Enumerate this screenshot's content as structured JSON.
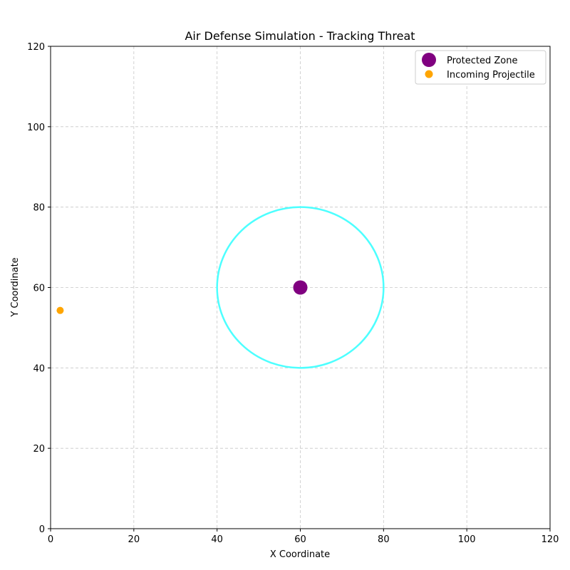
{
  "chart_data": {
    "type": "scatter",
    "title": "Air Defense Simulation - Tracking Threat",
    "xlabel": "X Coordinate",
    "ylabel": "Y Coordinate",
    "xlim": [
      0,
      120
    ],
    "ylim": [
      0,
      120
    ],
    "xticks": [
      0,
      20,
      40,
      60,
      80,
      100,
      120
    ],
    "yticks": [
      0,
      20,
      40,
      60,
      80,
      100,
      120
    ],
    "grid": true,
    "legend_position": "top-right",
    "series": [
      {
        "name": "Protected Zone",
        "x": [
          60
        ],
        "y": [
          60
        ],
        "color": "#800080",
        "marker": "large-circle"
      },
      {
        "name": "Incoming Projectile",
        "x": [
          2.3
        ],
        "y": [
          54.3
        ],
        "color": "#FFA500",
        "marker": "circle"
      }
    ],
    "annotations": [
      {
        "type": "circle",
        "center": [
          60,
          60
        ],
        "radius": 20,
        "color": "#4DFFFF"
      }
    ]
  }
}
